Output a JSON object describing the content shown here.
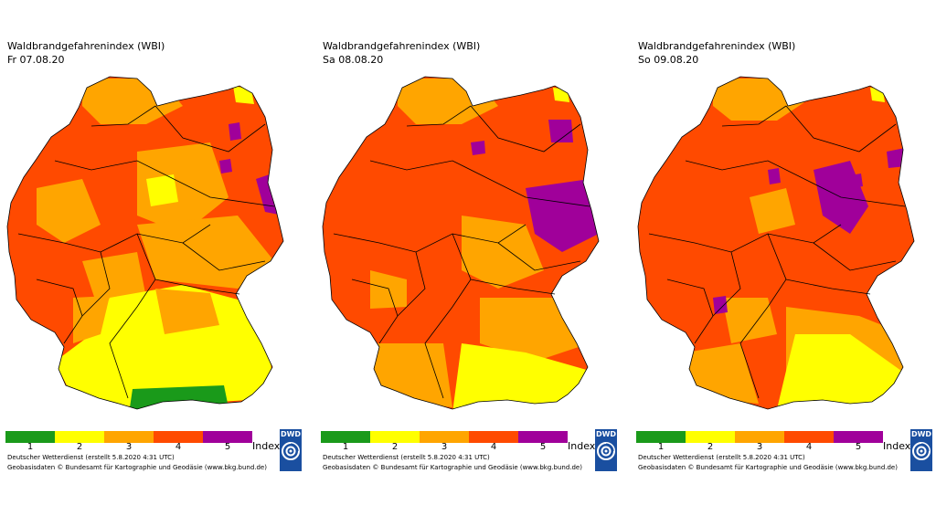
{
  "colors": {
    "index_1": "#1a9a1a",
    "index_2": "#ffff00",
    "index_3": "#ffa500",
    "index_4": "#ff4a00",
    "index_5": "#a0009a",
    "border": "#000000",
    "logo": "#1a4fa0"
  },
  "panels": [
    {
      "title": "Waldbrandgefahrenindex (WBI)",
      "date": "Fr 07.08.20",
      "legend": [
        "1",
        "2",
        "3",
        "4",
        "5"
      ],
      "index_label": "Index",
      "credit_line1": "Deutscher Wetterdienst (erstellt 5.8.2020 4:31 UTC)",
      "credit_line2": "Geobasisdaten © Bundesamt für Kartographie und Geodäsie (www.bkg.bund.de)",
      "logo_text": "DWD"
    },
    {
      "title": "Waldbrandgefahrenindex (WBI)",
      "date": "Sa 08.08.20",
      "legend": [
        "1",
        "2",
        "3",
        "4",
        "5"
      ],
      "index_label": "Index",
      "credit_line1": "Deutscher Wetterdienst (erstellt 5.8.2020 4:31 UTC)",
      "credit_line2": "Geobasisdaten © Bundesamt für Kartographie und Geodäsie (www.bkg.bund.de)",
      "logo_text": "DWD"
    },
    {
      "title": "Waldbrandgefahrenindex (WBI)",
      "date": "So 09.08.20",
      "legend": [
        "1",
        "2",
        "3",
        "4",
        "5"
      ],
      "index_label": "Index",
      "credit_line1": "Deutscher Wetterdienst (erstellt 5.8.2020 4:31 UTC)",
      "credit_line2": "Geobasisdaten © Bundesamt für Kartographie und Geodäsie (www.bkg.bund.de)",
      "logo_text": "DWD"
    }
  ]
}
